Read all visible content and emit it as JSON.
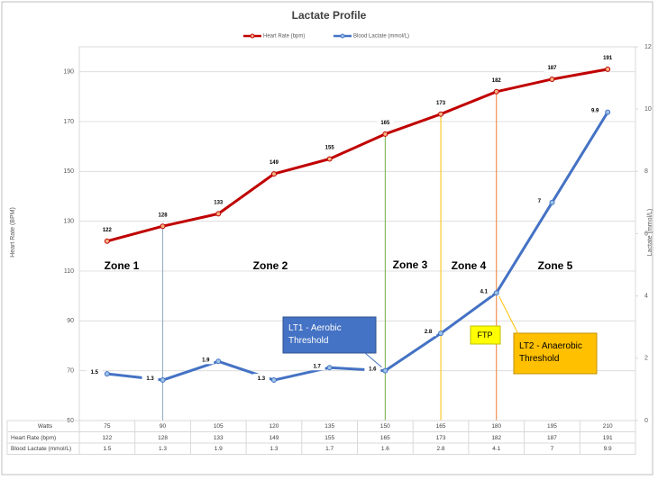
{
  "chart_data": {
    "type": "line",
    "title": "Lactate Profile",
    "x_label": "Watts",
    "y_label": "Heart Rate (BPM)",
    "y2_label": "Lactate (mmol/L)",
    "categories": [
      75,
      90,
      105,
      120,
      135,
      150,
      165,
      180,
      195,
      210
    ],
    "series": [
      {
        "name": "Heart Rate (bpm)",
        "color": "#c00000",
        "values": [
          122,
          128,
          133,
          149,
          155,
          165,
          173,
          182,
          187,
          191
        ]
      },
      {
        "name": "Blood Lactate (mmol/L)",
        "color": "#4472c4",
        "axis": "y2",
        "values": [
          1.5,
          1.3,
          1.9,
          1.3,
          1.7,
          1.6,
          2.8,
          4.1,
          7,
          9.9
        ]
      }
    ],
    "ylim": [
      50,
      200
    ],
    "yticks": [
      50,
      70,
      90,
      110,
      130,
      150,
      170,
      190
    ],
    "y2lim": [
      0,
      12
    ],
    "y2ticks": [
      0,
      2,
      4,
      6,
      8,
      10,
      12
    ],
    "grid": true,
    "legend": "top",
    "annotations": [
      "Zone 1",
      "Zone 2",
      "Zone 3",
      "Zone 4",
      "Zone 5",
      "LT1 - Aerobic Threshold",
      "FTP",
      "LT2 - Anaerobic Threshold"
    ]
  }
}
